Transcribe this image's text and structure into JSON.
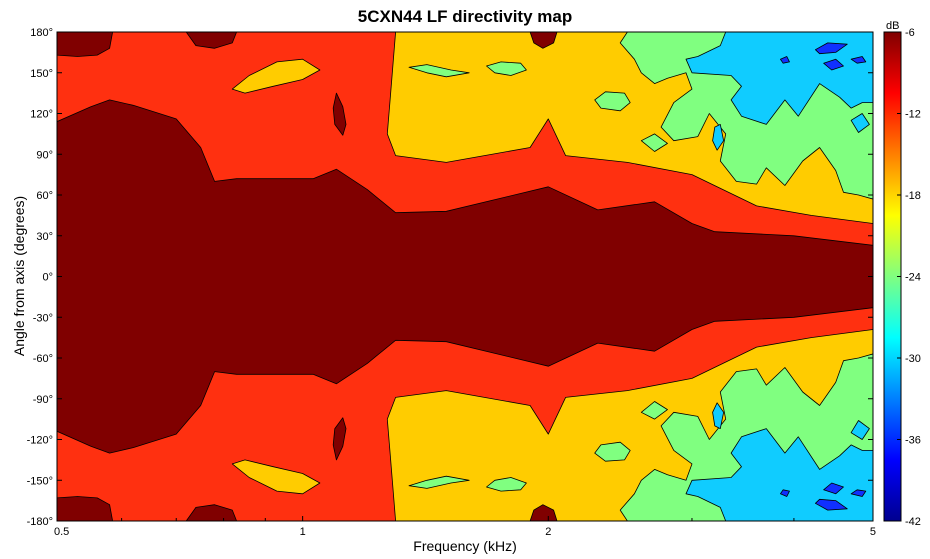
{
  "chart_data": {
    "type": "heatmap",
    "title": "5CXN44 LF directivity map",
    "xlabel": "Frequency (kHz)",
    "ylabel": "Angle from axis (degrees)",
    "x_scale": "log",
    "x_range_khz": [
      0.5,
      5
    ],
    "x_ticks": [
      {
        "value": 0.5,
        "label": "0.5"
      },
      {
        "value": 1,
        "label": "1"
      },
      {
        "value": 2,
        "label": "2"
      },
      {
        "value": 5,
        "label": "5"
      }
    ],
    "y_range_deg": [
      -180,
      180
    ],
    "y_ticks": [
      {
        "value": 180,
        "label": "180°"
      },
      {
        "value": 150,
        "label": "150°"
      },
      {
        "value": 120,
        "label": "120°"
      },
      {
        "value": 90,
        "label": "90°"
      },
      {
        "value": 60,
        "label": "60°"
      },
      {
        "value": 30,
        "label": "30°"
      },
      {
        "value": 0,
        "label": "0°"
      },
      {
        "value": -30,
        "label": "-30°"
      },
      {
        "value": -60,
        "label": "-60°"
      },
      {
        "value": -90,
        "label": "-90°"
      },
      {
        "value": -120,
        "label": "-120°"
      },
      {
        "value": -150,
        "label": "-150°"
      },
      {
        "value": -180,
        "label": "-180°"
      }
    ],
    "colorbar": {
      "unit_label": "dB",
      "range_db": [
        -42,
        -6
      ],
      "ticks": [
        {
          "value": -6,
          "label": "-6"
        },
        {
          "value": -12,
          "label": "-12"
        },
        {
          "value": -18,
          "label": "-18"
        },
        {
          "value": -24,
          "label": "-24"
        },
        {
          "value": -30,
          "label": "-30"
        },
        {
          "value": -36,
          "label": "-36"
        },
        {
          "value": -42,
          "label": "-42"
        }
      ],
      "colormap": "jet"
    },
    "contour_levels_db": [
      -12,
      -18,
      -24,
      -30,
      -36
    ],
    "level_colors": {
      "above_-12": "#800000",
      "-18_to_-12": "#ff3010",
      "-24_to_-18": "#ffcc00",
      "-30_to_-24": "#80ff80",
      "-36_to_-30": "#10ccff",
      "below_-36": "#1030ff"
    },
    "symmetric_about_0deg": true,
    "beamwidth_minus12db_deg": [
      {
        "f_khz": 0.5,
        "half_angle": 114
      },
      {
        "f_khz": 0.55,
        "half_angle": 125
      },
      {
        "f_khz": 0.58,
        "half_angle": 130
      },
      {
        "f_khz": 0.62,
        "half_angle": 126
      },
      {
        "f_khz": 0.7,
        "half_angle": 116
      },
      {
        "f_khz": 0.75,
        "half_angle": 95
      },
      {
        "f_khz": 0.78,
        "half_angle": 70
      },
      {
        "f_khz": 0.83,
        "half_angle": 72
      },
      {
        "f_khz": 1.03,
        "half_angle": 72
      },
      {
        "f_khz": 1.1,
        "half_angle": 79
      },
      {
        "f_khz": 1.2,
        "half_angle": 64
      },
      {
        "f_khz": 1.3,
        "half_angle": 47
      },
      {
        "f_khz": 1.5,
        "half_angle": 48
      },
      {
        "f_khz": 2.0,
        "half_angle": 66
      },
      {
        "f_khz": 2.3,
        "half_angle": 49
      },
      {
        "f_khz": 2.7,
        "half_angle": 55
      },
      {
        "f_khz": 3.0,
        "half_angle": 39
      },
      {
        "f_khz": 3.2,
        "half_angle": 33
      },
      {
        "f_khz": 4.0,
        "half_angle": 30
      },
      {
        "f_khz": 5.0,
        "half_angle": 23
      }
    ],
    "beamwidth_minus18db_deg": [
      {
        "f_khz": 0.5,
        "half_angle": 180
      },
      {
        "f_khz": 1.3,
        "half_angle": 180
      },
      {
        "f_khz": 1.3,
        "half_angle": 89
      },
      {
        "f_khz": 1.5,
        "half_angle": 84
      },
      {
        "f_khz": 1.9,
        "half_angle": 95
      },
      {
        "f_khz": 2.0,
        "half_angle": 116
      },
      {
        "f_khz": 2.1,
        "half_angle": 89
      },
      {
        "f_khz": 2.5,
        "half_angle": 84
      },
      {
        "f_khz": 3.0,
        "half_angle": 75
      },
      {
        "f_khz": 3.6,
        "half_angle": 52
      },
      {
        "f_khz": 4.2,
        "half_angle": 45
      },
      {
        "f_khz": 5.0,
        "half_angle": 39
      }
    ],
    "grid": true,
    "legend": "colorbar-right"
  }
}
